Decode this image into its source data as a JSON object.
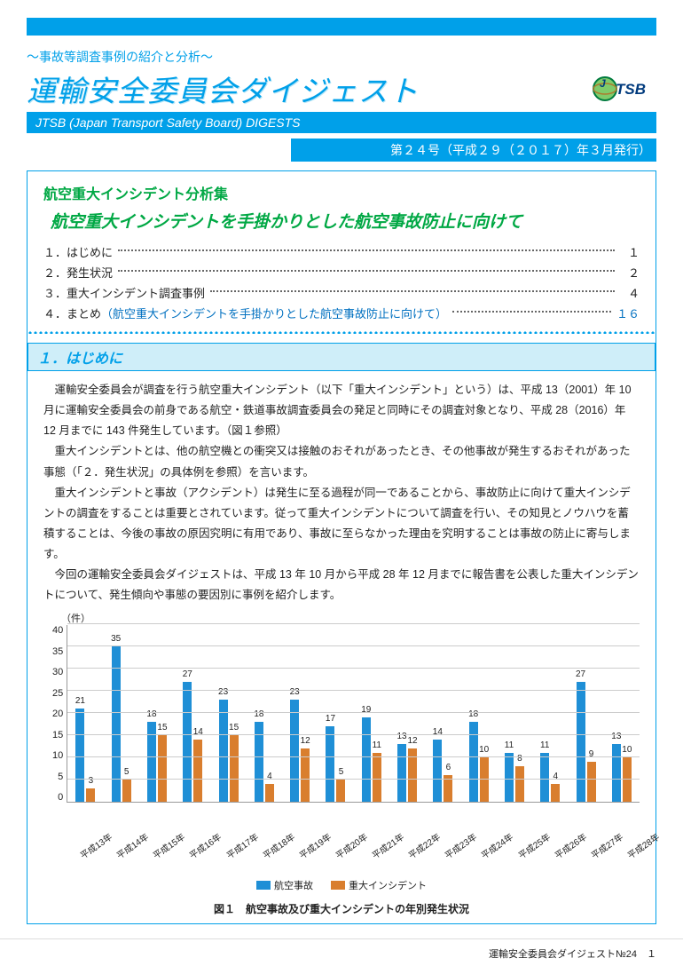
{
  "header": {
    "pre_title": "～事故等調査事例の紹介と分析～",
    "main_title": "運輸安全委員会ダイジェスト",
    "sub_bar": "JTSB (Japan Transport Safety Board) DIGESTS",
    "issue": "第２４号（平成２９（２０１７）年３月発行）"
  },
  "content": {
    "green_head": "航空重大インシデント分析集",
    "green_sub": "航空重大インシデントを手掛かりとした航空事故防止に向けて",
    "toc": [
      {
        "label": "１．はじめに",
        "page": "１",
        "blue": false
      },
      {
        "label": "２．発生状況",
        "page": "２",
        "blue": false
      },
      {
        "label": "３．重大インシデント調査事例",
        "page": "４",
        "blue": false
      },
      {
        "label": "４．まとめ（航空重大インシデントを手掛かりとした航空事故防止に向けて）",
        "page": "１６",
        "blue": true
      }
    ],
    "section_head": "１．はじめに",
    "paragraphs": [
      "運輸安全委員会が調査を行う航空重大インシデント（以下「重大インシデント」という）は、平成 13（2001）年 10 月に運輸安全委員会の前身である航空・鉄道事故調査委員会の発足と同時にその調査対象となり、平成 28（2016）年 12 月までに 143 件発生しています。（図１参照）",
      "重大インシデントとは、他の航空機との衝突又は接触のおそれがあったとき、その他事故が発生するおそれがあった事態（「２．発生状況」の具体例を参照）を言います。",
      "重大インシデントと事故（アクシデント）は発生に至る過程が同一であることから、事故防止に向けて重大インシデントの調査をすることは重要とされています。従って重大インシデントについて調査を行い、その知見とノウハウを蓄積することは、今後の事故の原因究明に有用であり、事故に至らなかった理由を究明することは事故の防止に寄与します。",
      "今回の運輸安全委員会ダイジェストは、平成 13 年 10 月から平成 28 年 12 月までに報告書を公表した重大インシデントについて、発生傾向や事態の要因別に事例を紹介します。"
    ]
  },
  "chart": {
    "y_unit": "（件）",
    "ylim": [
      0,
      40
    ],
    "ytick_step": 5,
    "colors": {
      "blue": "#1f8fd6",
      "orange": "#d97e2e",
      "grid": "#cccccc",
      "axis": "#999999"
    },
    "series_a_name": "航空事故",
    "series_b_name": "重大インシデント",
    "categories": [
      "平成13年",
      "平成14年",
      "平成15年",
      "平成16年",
      "平成17年",
      "平成18年",
      "平成19年",
      "平成20年",
      "平成21年",
      "平成22年",
      "平成23年",
      "平成24年",
      "平成25年",
      "平成26年",
      "平成27年",
      "平成28年"
    ],
    "series_a": [
      21,
      35,
      18,
      27,
      23,
      18,
      23,
      17,
      19,
      13,
      14,
      18,
      11,
      11,
      27,
      13
    ],
    "series_b": [
      3,
      5,
      15,
      14,
      15,
      4,
      12,
      5,
      11,
      12,
      6,
      10,
      8,
      4,
      9,
      10
    ],
    "caption": "図１　航空事故及び重大インシデントの年別発生状況"
  },
  "footer": "運輸安全委員会ダイジェスト№24　１"
}
